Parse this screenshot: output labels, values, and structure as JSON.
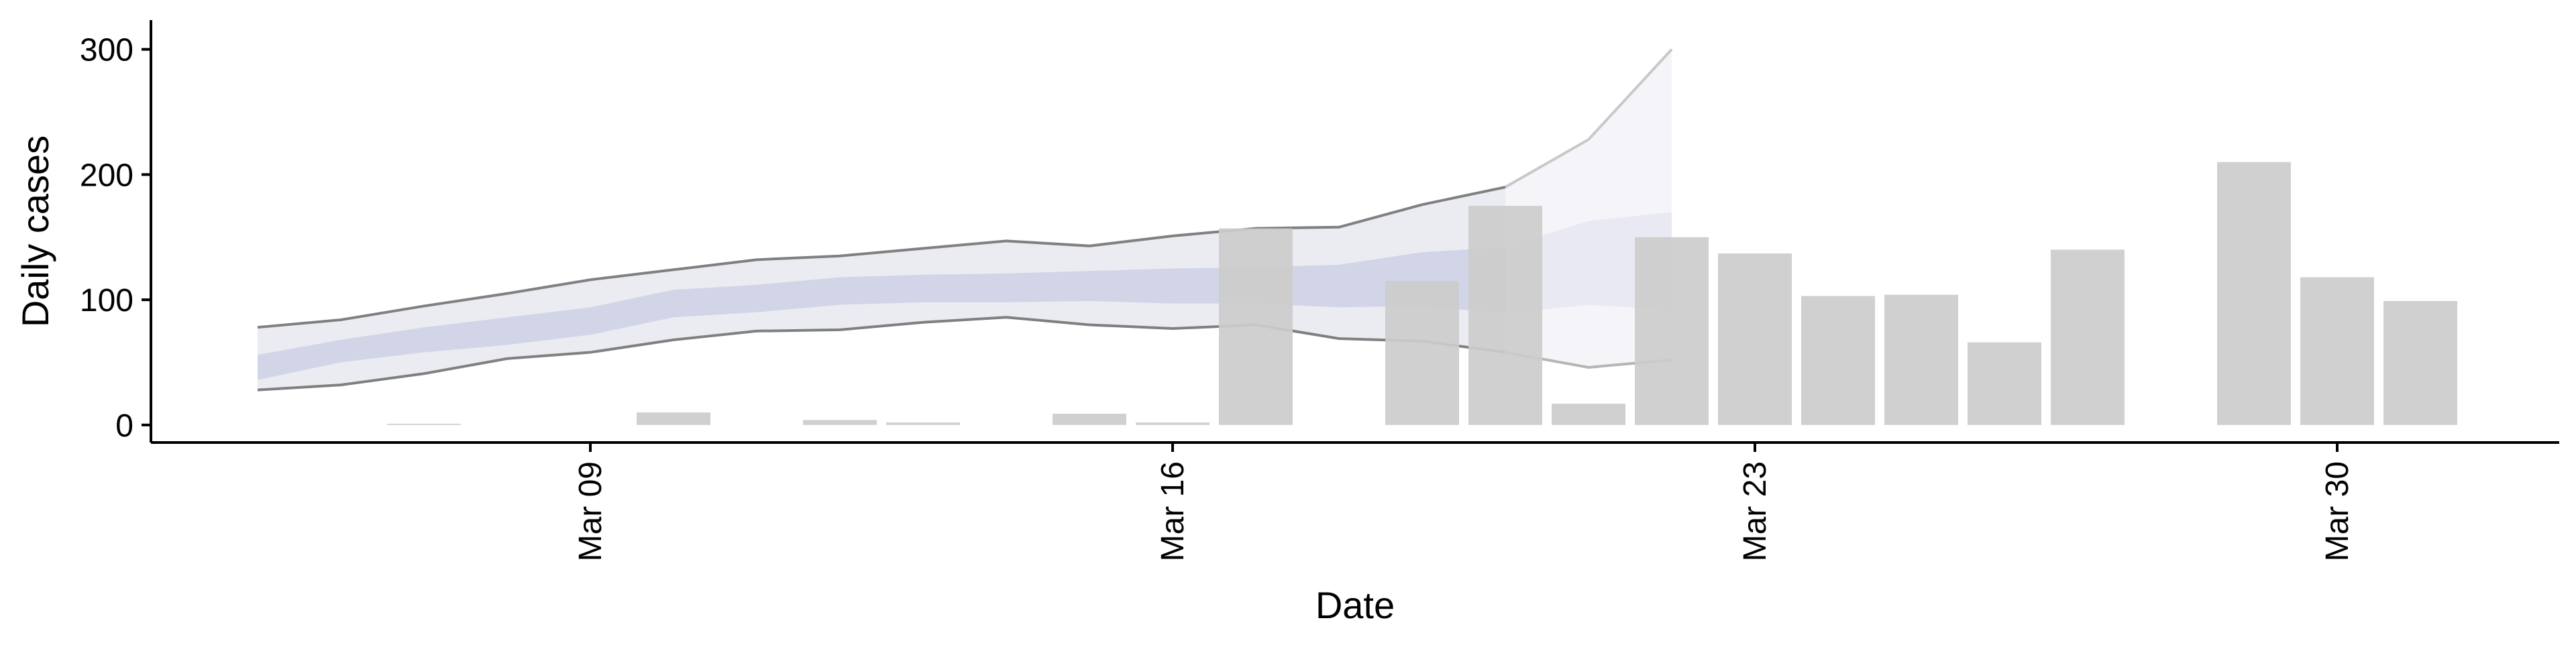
{
  "chart_data": {
    "type": "bar",
    "title": "",
    "xlabel": "Date",
    "ylabel": "Daily cases",
    "ylim": [
      -14,
      318
    ],
    "yticks": [
      0,
      100,
      200,
      300
    ],
    "x_tick_dates": [
      "Mar 09",
      "Mar 16",
      "Mar 23",
      "Mar 30"
    ],
    "x_tick_day_index": [
      9,
      16,
      23,
      30
    ],
    "grid": false,
    "legend": "none",
    "colors": {
      "bars": "#cccccc",
      "band_outer": "#e5e7ef",
      "band_inner": "#c5cae0",
      "band_edge": "#808080",
      "projection_band": "#f2f2f7",
      "projection_edge": "#c8c8c8",
      "axis": "#000000"
    },
    "bars": {
      "name": "Daily cases",
      "x": [
        "Mar 07",
        "Mar 10",
        "Mar 12",
        "Mar 13",
        "Mar 15",
        "Mar 16",
        "Mar 17",
        "Mar 19",
        "Mar 20",
        "Mar 21",
        "Mar 22",
        "Mar 23",
        "Mar 24",
        "Mar 25",
        "Mar 26",
        "Mar 27",
        "Mar 29",
        "Mar 30",
        "Mar 31"
      ],
      "values": [
        1,
        10,
        4,
        2,
        9,
        2,
        157,
        115,
        175,
        17,
        150,
        137,
        103,
        104,
        66,
        140,
        210,
        118,
        99
      ]
    },
    "estimate_band": {
      "x": [
        "Mar 05",
        "Mar 06",
        "Mar 07",
        "Mar 08",
        "Mar 09",
        "Mar 10",
        "Mar 11",
        "Mar 12",
        "Mar 13",
        "Mar 14",
        "Mar 15",
        "Mar 16",
        "Mar 17",
        "Mar 18",
        "Mar 19",
        "Mar 20"
      ],
      "outer_upper": [
        78,
        84,
        95,
        105,
        116,
        124,
        132,
        135,
        141,
        147,
        143,
        151,
        157,
        158,
        176,
        190
      ],
      "inner_upper": [
        56,
        68,
        78,
        86,
        94,
        108,
        112,
        118,
        120,
        121,
        123,
        125,
        126,
        128,
        138,
        142
      ],
      "inner_lower": [
        36,
        50,
        58,
        64,
        72,
        86,
        90,
        96,
        98,
        98,
        99,
        97,
        97,
        94,
        95,
        89
      ],
      "outer_lower": [
        28,
        32,
        41,
        53,
        58,
        68,
        75,
        76,
        82,
        86,
        80,
        77,
        80,
        69,
        67,
        58
      ]
    },
    "projection_band": {
      "x": [
        "Mar 20",
        "Mar 21",
        "Mar 22"
      ],
      "outer_upper": [
        190,
        228,
        300
      ],
      "inner_upper": [
        142,
        163,
        170
      ],
      "inner_lower": [
        89,
        96,
        92
      ],
      "outer_lower": [
        58,
        46,
        52
      ]
    }
  }
}
